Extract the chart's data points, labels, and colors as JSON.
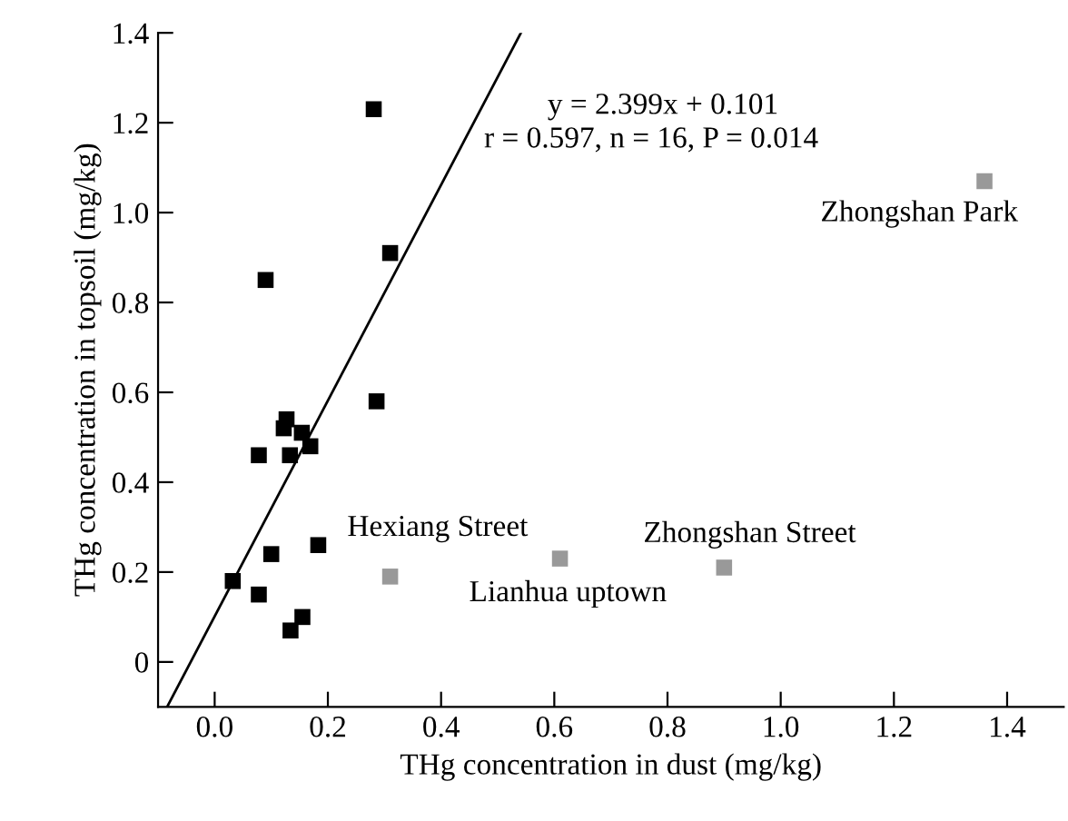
{
  "chart_data": {
    "type": "scatter",
    "xlabel": "THg concentration in dust (mg/kg)",
    "ylabel": "THg concentration in topsoil (mg/kg)",
    "marker": "square",
    "grid": false,
    "legend": false,
    "xlim": [
      -0.1,
      1.5
    ],
    "ylim": [
      -0.1,
      1.4
    ],
    "xticks": [
      {
        "value": 0,
        "label": "0.0"
      },
      0.2,
      0.4,
      0.6,
      0.8,
      {
        "value": 1,
        "label": "1.0"
      },
      1.2,
      1.4
    ],
    "yticks": [
      0,
      0.2,
      0.4,
      0.6,
      0.8,
      {
        "value": 1,
        "label": "1.0"
      },
      1.2,
      1.4
    ],
    "series": [
      {
        "color": "#000000",
        "x": [
          0.281,
          0.31,
          0.09,
          0.286,
          0.127,
          0.122,
          0.154,
          0.169,
          0.078,
          0.133,
          0.183,
          0.1,
          0.032,
          0.078,
          0.155,
          0.134
        ],
        "values": [
          1.23,
          0.91,
          0.85,
          0.58,
          0.54,
          0.52,
          0.51,
          0.48,
          0.46,
          0.46,
          0.26,
          0.24,
          0.18,
          0.15,
          0.1,
          0.07
        ]
      },
      {
        "color": "#999999",
        "x": [
          0.31,
          0.61,
          0.9,
          1.36
        ],
        "values": [
          0.19,
          0.23,
          0.21,
          1.07
        ]
      },
      {
        "type": "line",
        "marker": "none",
        "color": "#000000",
        "x": [
          -0.084,
          0.541
        ],
        "values": [
          -0.1,
          1.4
        ]
      }
    ],
    "annotations": [
      "y = 2.399x + 0.101",
      "r = 0.597, n = 16, P = 0.014",
      {
        "text": "Hexiang Street",
        "x": 0.31,
        "y": 0.19
      },
      {
        "text": "Lianhua uptown",
        "x": 0.61,
        "y": 0.23
      },
      {
        "text": "Zhongshan Street",
        "x": 0.9,
        "y": 0.21
      },
      {
        "text": "Zhongshan Park",
        "x": 1.36,
        "y": 1.07
      }
    ]
  }
}
